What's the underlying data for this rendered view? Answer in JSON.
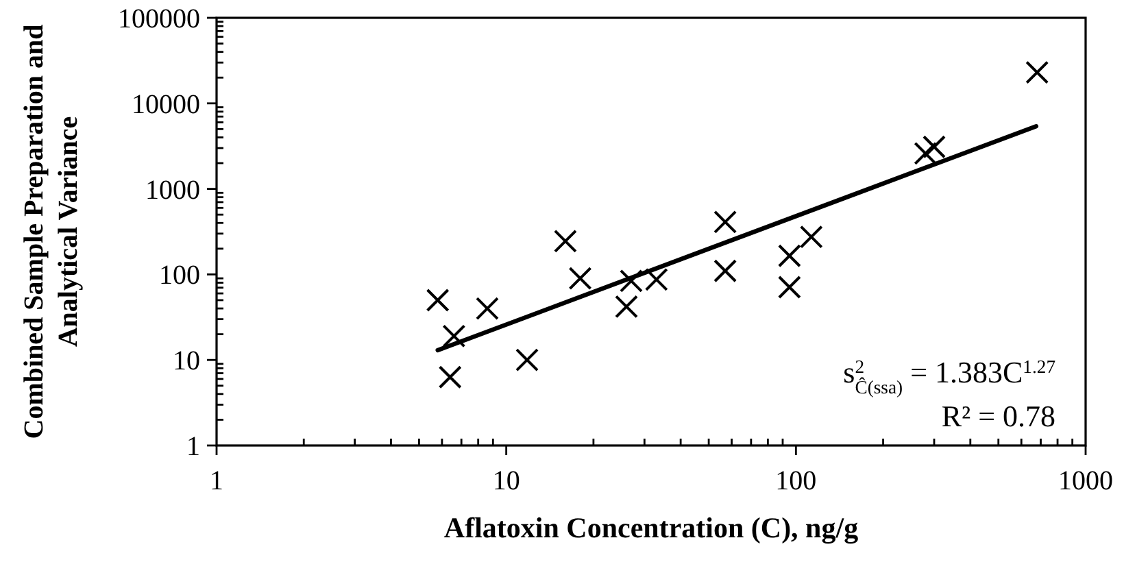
{
  "chart_data": {
    "type": "scatter",
    "xlabel": "Aflatoxin Concentration (C), ng/g",
    "ylabel": "Combined Sample Preparation and\nAnalytical Variance",
    "log": "xy",
    "xlim": [
      1,
      1000
    ],
    "ylim": [
      1,
      100000
    ],
    "xticks": [
      1,
      {
        "value": 2,
        "label": null
      },
      {
        "value": 3,
        "label": null
      },
      {
        "value": 4,
        "label": null
      },
      {
        "value": 5,
        "label": null
      },
      {
        "value": 6,
        "label": null
      },
      {
        "value": 7,
        "label": null
      },
      {
        "value": 8,
        "label": null
      },
      {
        "value": 9,
        "label": null
      },
      10,
      {
        "value": 20,
        "label": null
      },
      {
        "value": 30,
        "label": null
      },
      {
        "value": 40,
        "label": null
      },
      {
        "value": 50,
        "label": null
      },
      {
        "value": 60,
        "label": null
      },
      {
        "value": 70,
        "label": null
      },
      {
        "value": 80,
        "label": null
      },
      {
        "value": 90,
        "label": null
      },
      100,
      {
        "value": 200,
        "label": null
      },
      {
        "value": 300,
        "label": null
      },
      {
        "value": 400,
        "label": null
      },
      {
        "value": 500,
        "label": null
      },
      {
        "value": 600,
        "label": null
      },
      {
        "value": 700,
        "label": null
      },
      {
        "value": 800,
        "label": null
      },
      {
        "value": 900,
        "label": null
      },
      1000
    ],
    "yticks": [
      1,
      {
        "value": 2,
        "label": null
      },
      {
        "value": 3,
        "label": null
      },
      {
        "value": 4,
        "label": null
      },
      {
        "value": 5,
        "label": null
      },
      {
        "value": 6,
        "label": null
      },
      {
        "value": 7,
        "label": null
      },
      {
        "value": 8,
        "label": null
      },
      {
        "value": 9,
        "label": null
      },
      10,
      {
        "value": 20,
        "label": null
      },
      {
        "value": 30,
        "label": null
      },
      {
        "value": 40,
        "label": null
      },
      {
        "value": 50,
        "label": null
      },
      {
        "value": 60,
        "label": null
      },
      {
        "value": 70,
        "label": null
      },
      {
        "value": 80,
        "label": null
      },
      {
        "value": 90,
        "label": null
      },
      100,
      {
        "value": 200,
        "label": null
      },
      {
        "value": 300,
        "label": null
      },
      {
        "value": 400,
        "label": null
      },
      {
        "value": 500,
        "label": null
      },
      {
        "value": 600,
        "label": null
      },
      {
        "value": 700,
        "label": null
      },
      {
        "value": 800,
        "label": null
      },
      {
        "value": 900,
        "label": null
      },
      1000,
      {
        "value": 2000,
        "label": null
      },
      {
        "value": 3000,
        "label": null
      },
      {
        "value": 4000,
        "label": null
      },
      {
        "value": 5000,
        "label": null
      },
      {
        "value": 6000,
        "label": null
      },
      {
        "value": 7000,
        "label": null
      },
      {
        "value": 8000,
        "label": null
      },
      {
        "value": 9000,
        "label": null
      },
      10000,
      {
        "value": 20000,
        "label": null
      },
      {
        "value": 30000,
        "label": null
      },
      {
        "value": 40000,
        "label": null
      },
      {
        "value": 50000,
        "label": null
      },
      {
        "value": 60000,
        "label": null
      },
      {
        "value": 70000,
        "label": null
      },
      {
        "value": 80000,
        "label": null
      },
      {
        "value": 90000,
        "label": null
      },
      100000
    ],
    "series": [
      {
        "color": "#000000",
        "marker": "cross",
        "x": [
          5.8,
          6.4,
          6.6,
          8.6,
          11.8,
          16,
          18,
          26,
          27,
          33,
          57,
          57,
          95,
          95,
          113,
          280,
          300,
          680
        ],
        "values": [
          50,
          6.3,
          19,
          40,
          10,
          245,
          90,
          42,
          84,
          87,
          410,
          110,
          71,
          165,
          275,
          2600,
          3100,
          23000
        ]
      },
      {
        "type": "line",
        "color": "#000000",
        "line_style": "solid",
        "x": [
          5.8,
          675
        ],
        "values": [
          13,
          5400
        ]
      }
    ],
    "annotations": [
      "s$^{2}$$_{Ĉ(ssa)}$ = 1.383C$^{1.27}$",
      "R² = 0.78"
    ]
  }
}
